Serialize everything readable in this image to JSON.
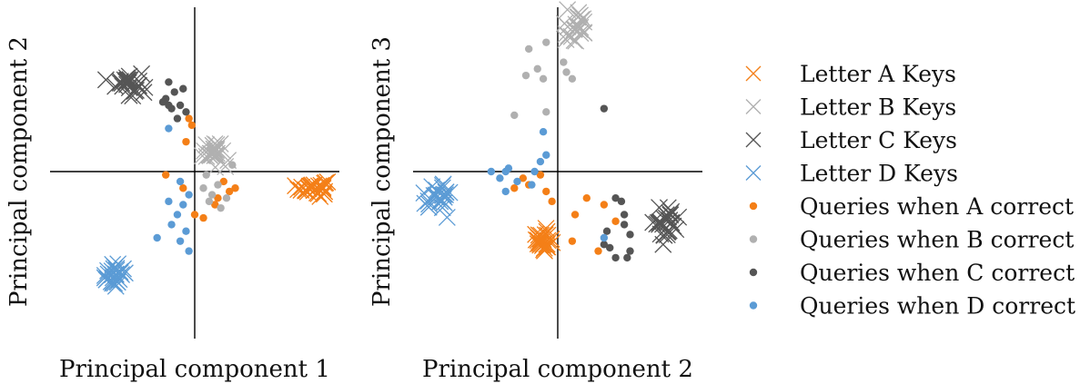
{
  "colors": {
    "A": "#f47f17",
    "B": "#b0b0b0",
    "C": "#555555",
    "D": "#5b9bd5"
  },
  "legend": [
    {
      "label": "Letter A Keys",
      "marker": "x",
      "color_key": "A"
    },
    {
      "label": "Letter B Keys",
      "marker": "x",
      "color_key": "B"
    },
    {
      "label": "Letter C Keys",
      "marker": "x",
      "color_key": "C"
    },
    {
      "label": "Letter D Keys",
      "marker": "x",
      "color_key": "D"
    },
    {
      "label": "Queries when A correct",
      "marker": "dot",
      "color_key": "A"
    },
    {
      "label": "Queries when B correct",
      "marker": "dot",
      "color_key": "B"
    },
    {
      "label": "Queries when C correct",
      "marker": "dot",
      "color_key": "C"
    },
    {
      "label": "Queries when D correct",
      "marker": "dot",
      "color_key": "D"
    }
  ],
  "chart_data": [
    {
      "type": "scatter",
      "xlabel": "Principal component 1",
      "ylabel": "Principal component 2",
      "xlim": [
        -5,
        5
      ],
      "ylim": [
        -5,
        5
      ],
      "grid": false,
      "key_clusters": [
        {
          "series": "A",
          "center": [
            4.1,
            -0.5
          ],
          "spread": [
            0.45,
            0.22
          ],
          "count": 32
        },
        {
          "series": "B",
          "center": [
            0.7,
            0.6
          ],
          "spread": [
            0.45,
            0.3
          ],
          "count": 26
        },
        {
          "series": "C",
          "center": [
            -2.3,
            2.7
          ],
          "spread": [
            0.4,
            0.35
          ],
          "count": 30
        },
        {
          "series": "D",
          "center": [
            -2.8,
            -3.1
          ],
          "spread": [
            0.35,
            0.35
          ],
          "count": 30
        }
      ],
      "query_points": {
        "A": [
          [
            -0.1,
            1.4
          ],
          [
            -0.3,
            0.9
          ],
          [
            1.0,
            -0.3
          ],
          [
            1.4,
            -0.5
          ],
          [
            0.8,
            -0.8
          ],
          [
            -0.4,
            -0.5
          ],
          [
            0.7,
            -1.0
          ],
          [
            0.0,
            -1.3
          ],
          [
            0.3,
            -1.4
          ],
          [
            1.2,
            -0.6
          ],
          [
            -1.0,
            -0.1
          ],
          [
            -0.2,
            1.6
          ]
        ],
        "B": [
          [
            1.3,
            0.2
          ],
          [
            0.4,
            -0.1
          ],
          [
            0.8,
            -0.4
          ],
          [
            0.6,
            -0.7
          ],
          [
            1.1,
            -0.8
          ],
          [
            0.5,
            -0.9
          ],
          [
            0.9,
            -1.1
          ],
          [
            0.3,
            -0.5
          ]
        ],
        "C": [
          [
            -0.9,
            2.7
          ],
          [
            -0.7,
            2.4
          ],
          [
            -1.0,
            2.2
          ],
          [
            -0.5,
            2.0
          ],
          [
            -0.8,
            1.9
          ],
          [
            -0.3,
            1.8
          ],
          [
            -0.6,
            1.6
          ],
          [
            -1.1,
            2.1
          ],
          [
            -0.4,
            2.5
          ],
          [
            -0.9,
            2.0
          ]
        ],
        "D": [
          [
            -0.9,
            1.3
          ],
          [
            -0.5,
            -0.3
          ],
          [
            -0.9,
            -0.9
          ],
          [
            -0.2,
            -0.7
          ],
          [
            -0.6,
            -1.3
          ],
          [
            -0.3,
            -1.8
          ],
          [
            -0.8,
            -1.6
          ],
          [
            -0.5,
            -2.1
          ],
          [
            -0.2,
            -2.4
          ],
          [
            -1.3,
            -2.0
          ],
          [
            -0.4,
            -1.0
          ]
        ]
      }
    },
    {
      "type": "scatter",
      "xlabel": "Principal component 2",
      "ylabel": "Principal component 3",
      "xlim": [
        -5,
        5
      ],
      "ylim": [
        -5,
        5
      ],
      "grid": false,
      "key_clusters": [
        {
          "series": "A",
          "center": [
            -0.5,
            -2.1
          ],
          "spread": [
            0.3,
            0.3
          ],
          "count": 30
        },
        {
          "series": "B",
          "center": [
            0.7,
            4.4
          ],
          "spread": [
            0.35,
            0.4
          ],
          "count": 26
        },
        {
          "series": "C",
          "center": [
            3.7,
            -1.6
          ],
          "spread": [
            0.45,
            0.45
          ],
          "count": 32
        },
        {
          "series": "D",
          "center": [
            -4.1,
            -0.7
          ],
          "spread": [
            0.4,
            0.35
          ],
          "count": 30
        }
      ],
      "query_points": {
        "A": [
          [
            -1.0,
            -0.4
          ],
          [
            -1.5,
            -0.5
          ],
          [
            -0.4,
            -0.6
          ],
          [
            -0.2,
            -0.9
          ],
          [
            1.0,
            -0.8
          ],
          [
            0.6,
            -1.3
          ],
          [
            0.5,
            -2.1
          ],
          [
            1.4,
            -2.4
          ],
          [
            1.6,
            -1.0
          ],
          [
            2.0,
            -1.5
          ],
          [
            -1.2,
            -0.2
          ],
          [
            -0.6,
            -0.1
          ]
        ],
        "B": [
          [
            -1.0,
            3.7
          ],
          [
            -0.7,
            3.1
          ],
          [
            -0.4,
            3.9
          ],
          [
            -1.1,
            2.9
          ],
          [
            -0.5,
            2.8
          ],
          [
            0.2,
            3.3
          ],
          [
            0.3,
            3.0
          ],
          [
            0.5,
            2.8
          ],
          [
            -1.5,
            1.7
          ],
          [
            -0.4,
            1.8
          ]
        ],
        "C": [
          [
            1.6,
            1.9
          ],
          [
            2.0,
            -0.8
          ],
          [
            2.2,
            -0.9
          ],
          [
            2.3,
            -1.3
          ],
          [
            2.3,
            -1.6
          ],
          [
            1.7,
            -1.8
          ],
          [
            1.8,
            -2.3
          ],
          [
            2.0,
            -2.6
          ],
          [
            2.4,
            -2.6
          ],
          [
            1.6,
            -2.2
          ],
          [
            2.5,
            -1.9
          ],
          [
            2.5,
            -2.4
          ]
        ],
        "D": [
          [
            -0.5,
            1.2
          ],
          [
            -0.4,
            0.5
          ],
          [
            -0.6,
            0.3
          ],
          [
            -0.8,
            0.0
          ],
          [
            -1.8,
            0.0
          ],
          [
            -2.0,
            -0.2
          ],
          [
            -1.4,
            -0.3
          ],
          [
            -1.8,
            -0.6
          ],
          [
            -2.3,
            0.0
          ],
          [
            -0.9,
            -0.4
          ],
          [
            1.6,
            -2.0
          ],
          [
            -1.7,
            0.1
          ]
        ]
      }
    }
  ]
}
